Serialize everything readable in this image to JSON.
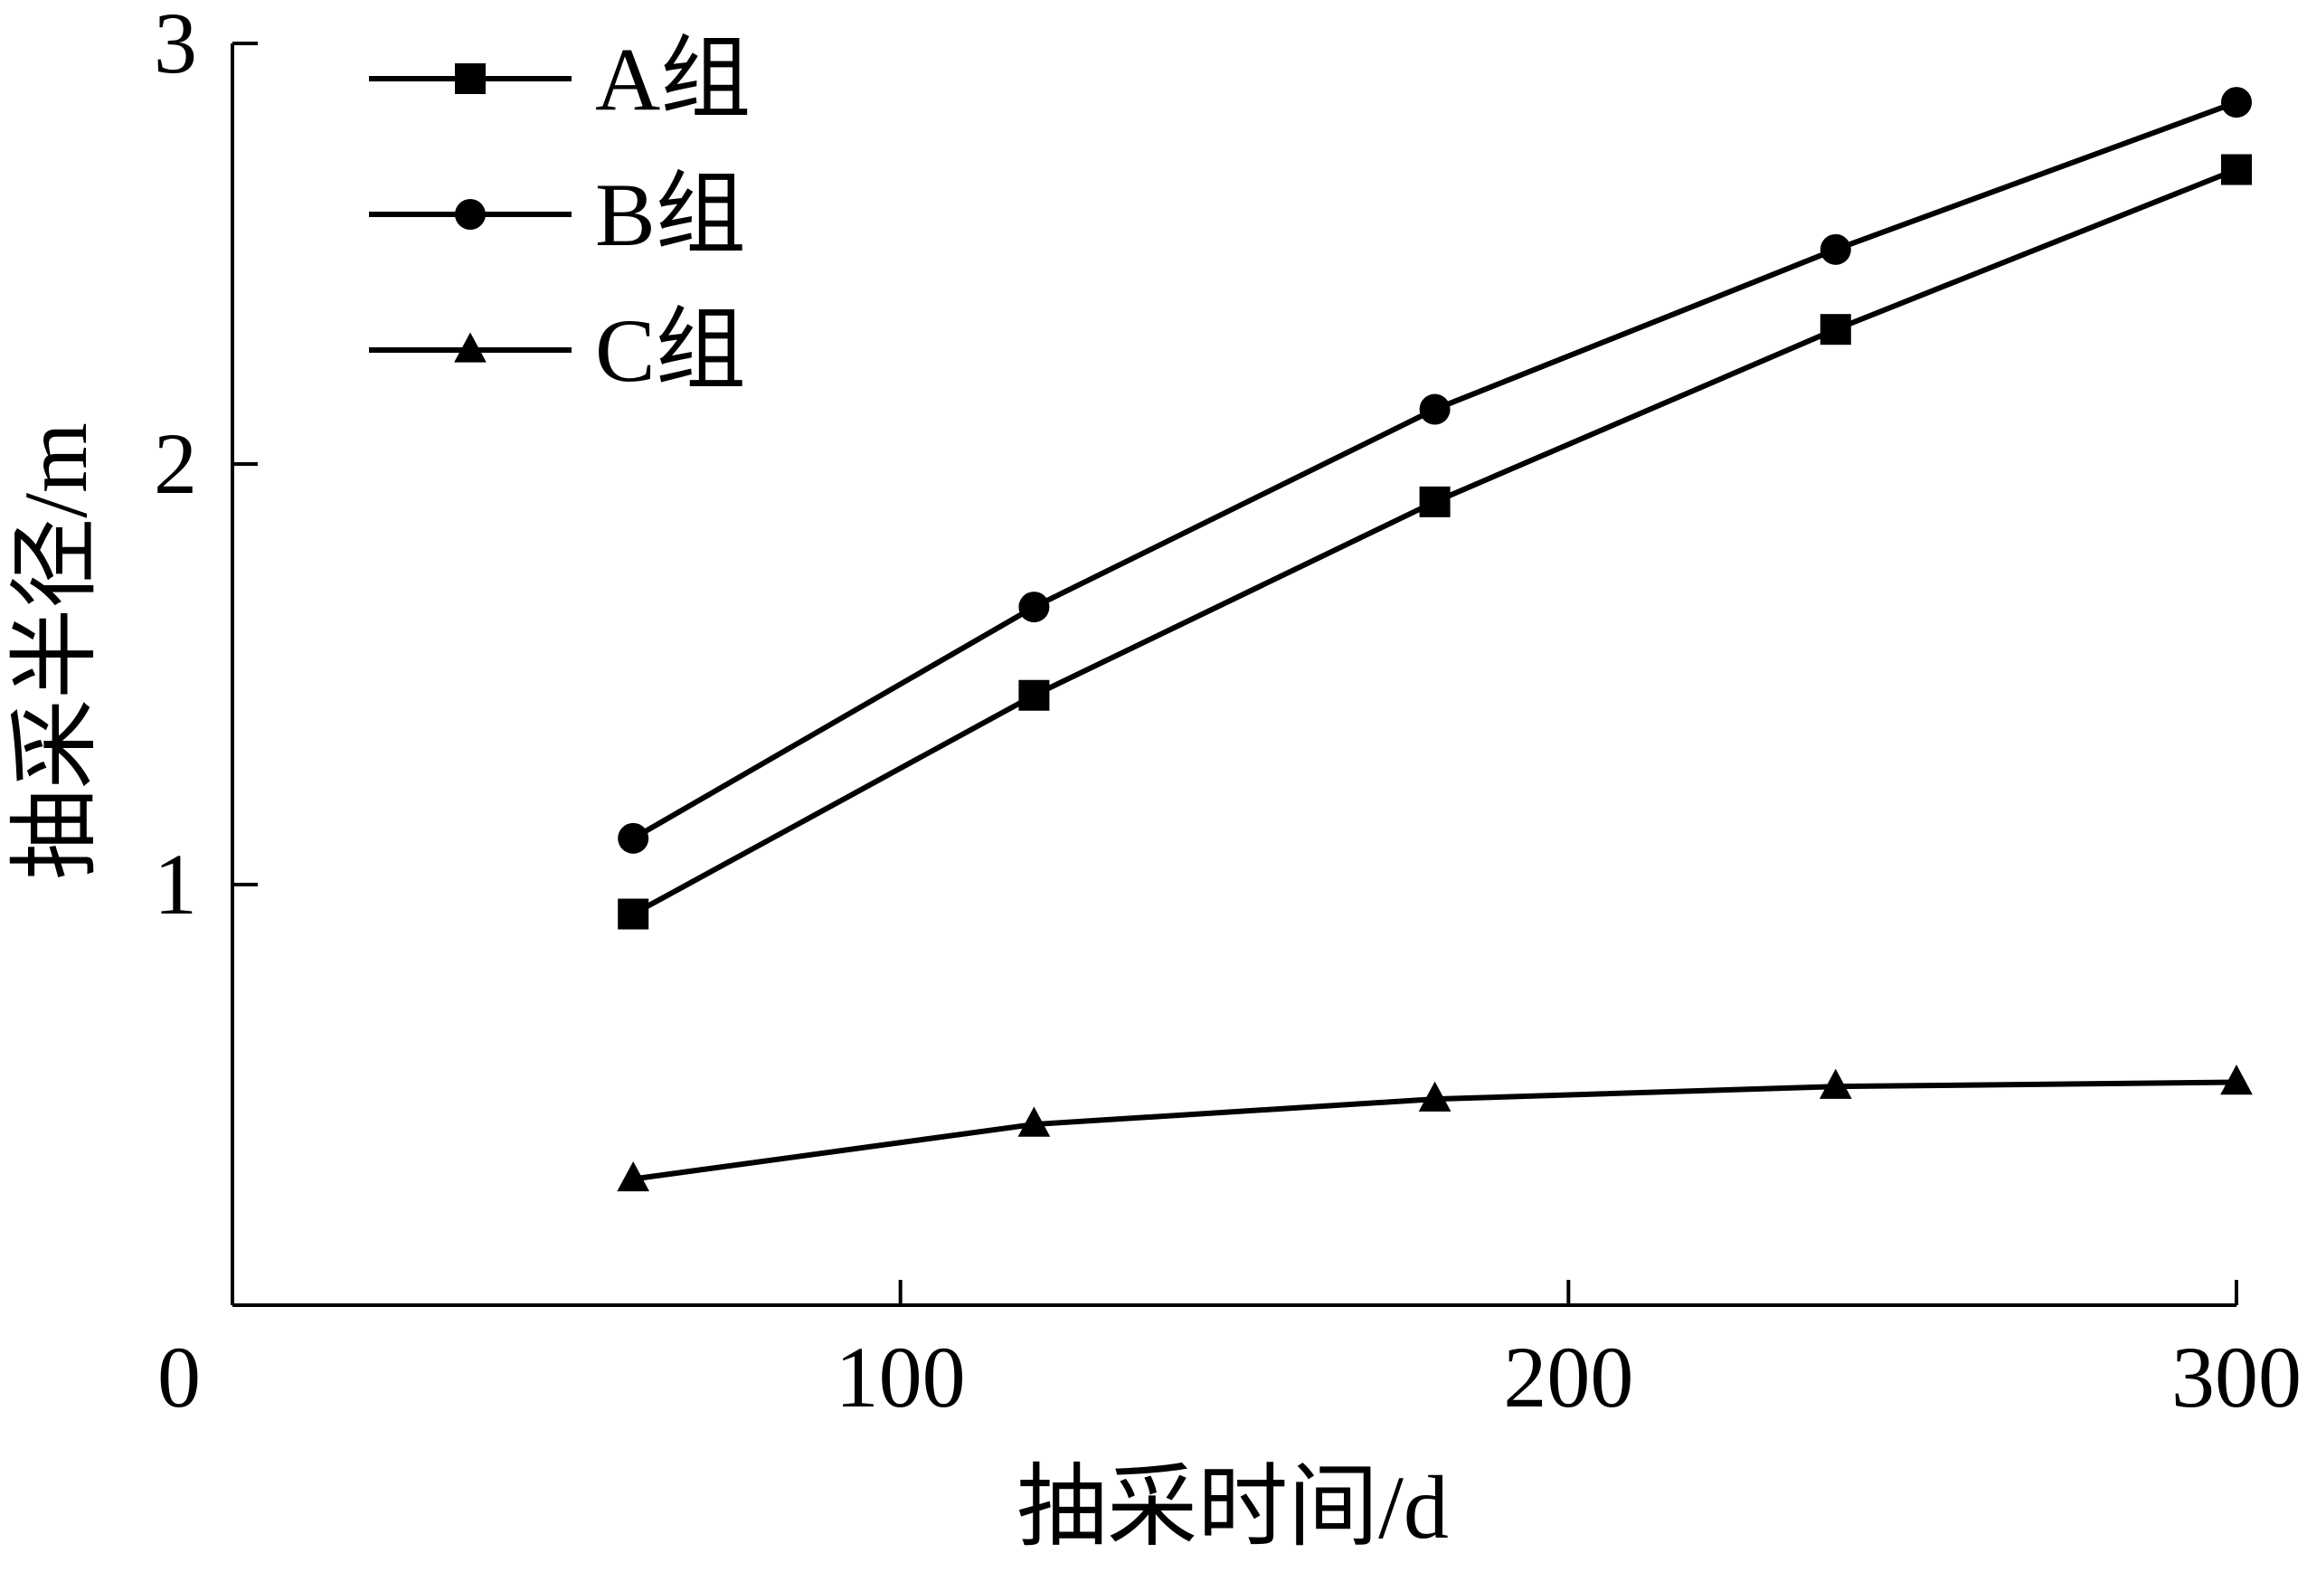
{
  "chart_data": {
    "type": "line",
    "title": "",
    "xlabel": "抽采时间/d",
    "ylabel": "抽采半径/m",
    "xlim": [
      0,
      300
    ],
    "ylim": [
      0,
      3
    ],
    "x_ticks": [
      "0",
      "100",
      "200",
      "300"
    ],
    "y_ticks": [
      "1",
      "2",
      "3"
    ],
    "x": [
      60,
      120,
      180,
      240,
      300
    ],
    "grid": false,
    "legend_position": "top-left",
    "series": [
      {
        "name": "A组",
        "marker": "square",
        "color": "#000000",
        "values": [
          0.93,
          1.45,
          1.91,
          2.32,
          2.7
        ]
      },
      {
        "name": "B组",
        "marker": "circle",
        "color": "#000000",
        "values": [
          1.11,
          1.66,
          2.13,
          2.51,
          2.86
        ]
      },
      {
        "name": "C组",
        "marker": "triangle",
        "color": "#000000",
        "values": [
          0.3,
          0.43,
          0.49,
          0.52,
          0.53
        ]
      }
    ]
  }
}
